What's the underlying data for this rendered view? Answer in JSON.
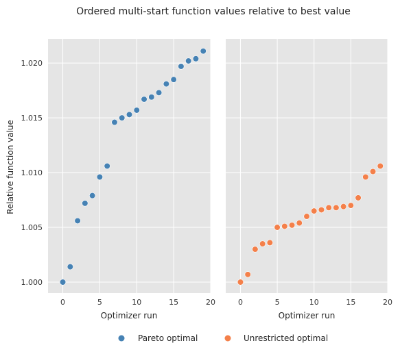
{
  "figure": {
    "title": "Ordered multi-start function values relative to best value"
  },
  "chart_data": [
    {
      "type": "scatter",
      "title": "",
      "xlabel": "Optimizer run",
      "ylabel": "Relative function value",
      "xlim": [
        -2,
        20
      ],
      "ylim": [
        0.999,
        1.0222
      ],
      "xticks": [
        0,
        5,
        10,
        15,
        20
      ],
      "yticks": [
        1.0,
        1.005,
        1.01,
        1.015,
        1.02
      ],
      "ytick_labels": [
        "1.000",
        "1.005",
        "1.010",
        "1.015",
        "1.020"
      ],
      "grid": true,
      "series": [
        {
          "name": "Pareto optimal",
          "color": "#4682b4",
          "x": [
            0,
            1,
            2,
            3,
            4,
            5,
            6,
            7,
            8,
            9,
            10,
            11,
            12,
            13,
            14,
            15,
            16,
            17,
            18,
            19
          ],
          "y": [
            1.0,
            1.0014,
            1.0056,
            1.0072,
            1.0079,
            1.0096,
            1.0106,
            1.0146,
            1.015,
            1.0153,
            1.0157,
            1.0167,
            1.0169,
            1.0173,
            1.0181,
            1.0185,
            1.0197,
            1.0202,
            1.0204,
            1.0211
          ]
        }
      ]
    },
    {
      "type": "scatter",
      "title": "",
      "xlabel": "Optimizer run",
      "ylabel": "",
      "xlim": [
        -2,
        20
      ],
      "ylim": [
        0.999,
        1.0222
      ],
      "xticks": [
        0,
        5,
        10,
        15,
        20
      ],
      "yticks": [
        1.0,
        1.005,
        1.01,
        1.015,
        1.02
      ],
      "grid": true,
      "shared_y": true,
      "series": [
        {
          "name": "Unrestricted optimal",
          "color": "#f4804a",
          "x": [
            0,
            1,
            2,
            3,
            4,
            5,
            6,
            7,
            8,
            9,
            10,
            11,
            12,
            13,
            14,
            15,
            16,
            17,
            18,
            19
          ],
          "y": [
            1.0,
            1.0007,
            1.003,
            1.0035,
            1.0036,
            1.005,
            1.0051,
            1.0052,
            1.0054,
            1.006,
            1.0065,
            1.0066,
            1.0068,
            1.0068,
            1.0069,
            1.007,
            1.0077,
            1.0096,
            1.0101,
            1.0106
          ]
        }
      ]
    }
  ],
  "legend": {
    "placement": "bottom-center",
    "items": [
      {
        "label": "Pareto optimal",
        "color": "#4682b4"
      },
      {
        "label": "Unrestricted optimal",
        "color": "#f4804a"
      }
    ]
  }
}
